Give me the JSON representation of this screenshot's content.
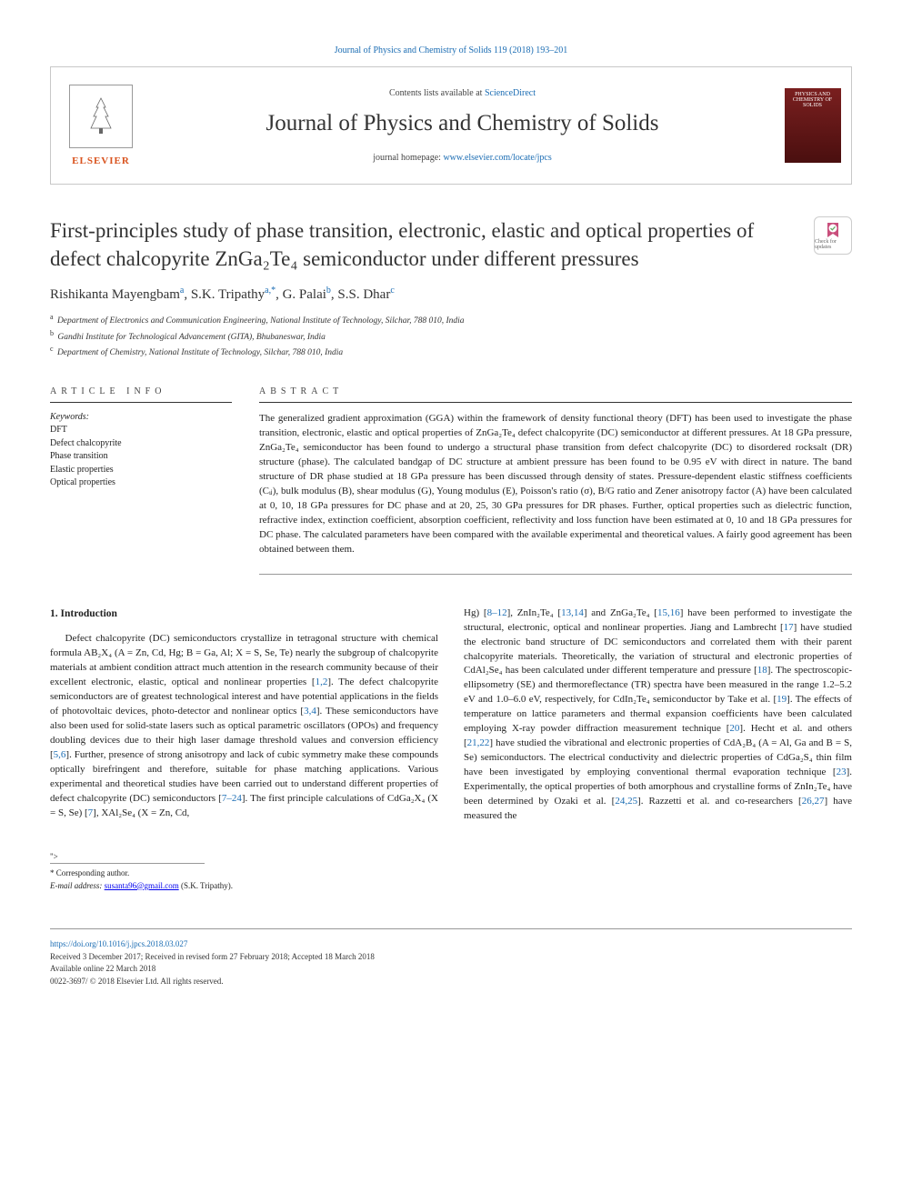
{
  "topCitation": "Journal of Physics and Chemistry of Solids 119 (2018) 193–201",
  "header": {
    "contentsPrefix": "Contents lists available at ",
    "contentsLink": "ScienceDirect",
    "journalName": "Journal of Physics and Chemistry of Solids",
    "homepagePrefix": "journal homepage: ",
    "homepageLink": "www.elsevier.com/locate/jpcs",
    "elsevierWord": "ELSEVIER",
    "coverText": "PHYSICS AND CHEMISTRY OF SOLIDS",
    "checkBadge": "Check for updates"
  },
  "title": "First-principles study of phase transition, electronic, elastic and optical properties of defect chalcopyrite ZnGa₂Te₄ semiconductor under different pressures",
  "authorsHtml": "Rishikanta Mayengbam<sup>a</sup>, S.K. Tripathy<sup>a,*</sup>, G. Palai<sup>b</sup>, S.S. Dhar<sup>c</sup>",
  "affiliations": [
    {
      "sup": "a",
      "text": "Department of Electronics and Communication Engineering, National Institute of Technology, Silchar, 788 010, India"
    },
    {
      "sup": "b",
      "text": "Gandhi Institute for Technological Advancement (GITA), Bhubaneswar, India"
    },
    {
      "sup": "c",
      "text": "Department of Chemistry, National Institute of Technology, Silchar, 788 010, India"
    }
  ],
  "articleInfoHead": "ARTICLE INFO",
  "abstractHead": "ABSTRACT",
  "keywordsLabel": "Keywords:",
  "keywords": [
    "DFT",
    "Defect chalcopyrite",
    "Phase transition",
    "Elastic properties",
    "Optical properties"
  ],
  "abstract": "The generalized gradient approximation (GGA) within the framework of density functional theory (DFT) has been used to investigate the phase transition, electronic, elastic and optical properties of ZnGa₂Te₄ defect chalcopyrite (DC) semiconductor at different pressures. At 18 GPa pressure, ZnGa₂Te₄ semiconductor has been found to undergo a structural phase transition from defect chalcopyrite (DC) to disordered rocksalt (DR) structure (phase). The calculated bandgap of DC structure at ambient pressure has been found to be 0.95 eV with direct in nature. The band structure of DR phase studied at 18 GPa pressure has been discussed through density of states. Pressure-dependent elastic stiffness coefficients (Cᵢⱼ), bulk modulus (B), shear modulus (G), Young modulus (E), Poisson's ratio (σ), B/G ratio and Zener anisotropy factor (A) have been calculated at 0, 10, 18 GPa pressures for DC phase and at 20, 25, 30 GPa pressures for DR phases. Further, optical properties such as dielectric function, refractive index, extinction coefficient, absorption coefficient, reflectivity and loss function have been estimated at 0, 10 and 18 GPa pressures for DC phase. The calculated parameters have been compared with the available experimental and theoretical values. A fairly good agreement has been obtained between them.",
  "intro": {
    "heading": "1. Introduction",
    "col1": "Defect chalcopyrite (DC) semiconductors crystallize in tetragonal structure with chemical formula AB₂X₄ (A = Zn, Cd, Hg; B = Ga, Al; X = S, Se, Te) nearly the subgroup of chalcopyrite materials at ambient condition attract much attention in the research community because of their excellent electronic, elastic, optical and nonlinear properties [1,2]. The defect chalcopyrite semiconductors are of greatest technological interest and have potential applications in the fields of photovoltaic devices, photo-detector and nonlinear optics [3,4]. These semiconductors have also been used for solid-state lasers such as optical parametric oscillators (OPOs) and frequency doubling devices due to their high laser damage threshold values and conversion efficiency [5,6]. Further, presence of strong anisotropy and lack of cubic symmetry make these compounds optically birefringent and therefore, suitable for phase matching applications. Various experimental and theoretical studies have been carried out to understand different properties of defect chalcopyrite (DC) semiconductors [7–24]. The first principle calculations of CdGa₂X₄ (X = S, Se) [7], XAl₂Se₄ (X = Zn, Cd,",
    "col2": "Hg) [8–12], ZnIn₂Te₄ [13,14] and ZnGa₂Te₄ [15,16] have been performed to investigate the structural, electronic, optical and nonlinear properties. Jiang and Lambrecht [17] have studied the electronic band structure of DC semiconductors and correlated them with their parent chalcopyrite materials. Theoretically, the variation of structural and electronic properties of CdAl₂Se₄ has been calculated under different temperature and pressure [18]. The spectroscopic-ellipsometry (SE) and thermoreflectance (TR) spectra have been measured in the range 1.2–5.2 eV and 1.0–6.0 eV, respectively, for CdIn₂Te₄ semiconductor by Take et al. [19]. The effects of temperature on lattice parameters and thermal expansion coefficients have been calculated employing X-ray powder diffraction measurement technique [20]. Hecht et al. and others [21,22] have studied the vibrational and electronic properties of CdA₂B₄ (A = Al, Ga and B = S, Se) semiconductors. The electrical conductivity and dielectric properties of CdGa₂S₄ thin film have been investigated by employing conventional thermal evaporation technique [23]. Experimentally, the optical properties of both amorphous and crystalline forms of ZnIn₂Te₄ have been determined by Ozaki et al. [24,25]. Razzetti et al. and co-researchers [26,27] have measured the"
  },
  "corr": {
    "star": "* Corresponding author.",
    "emailLabel": "E-mail address: ",
    "email": "susanta96@gmail.com",
    "emailSuffix": " (S.K. Tripathy)."
  },
  "footer": {
    "doi": "https://doi.org/10.1016/j.jpcs.2018.03.027",
    "received": "Received 3 December 2017; Received in revised form 27 February 2018; Accepted 18 March 2018",
    "online": "Available online 22 March 2018",
    "copyright": "0022-3697/ © 2018 Elsevier Ltd. All rights reserved."
  },
  "colors": {
    "link": "#1a6cb3",
    "elsevierOrange": "#d9531e",
    "text": "#333333",
    "rule": "#999999"
  }
}
